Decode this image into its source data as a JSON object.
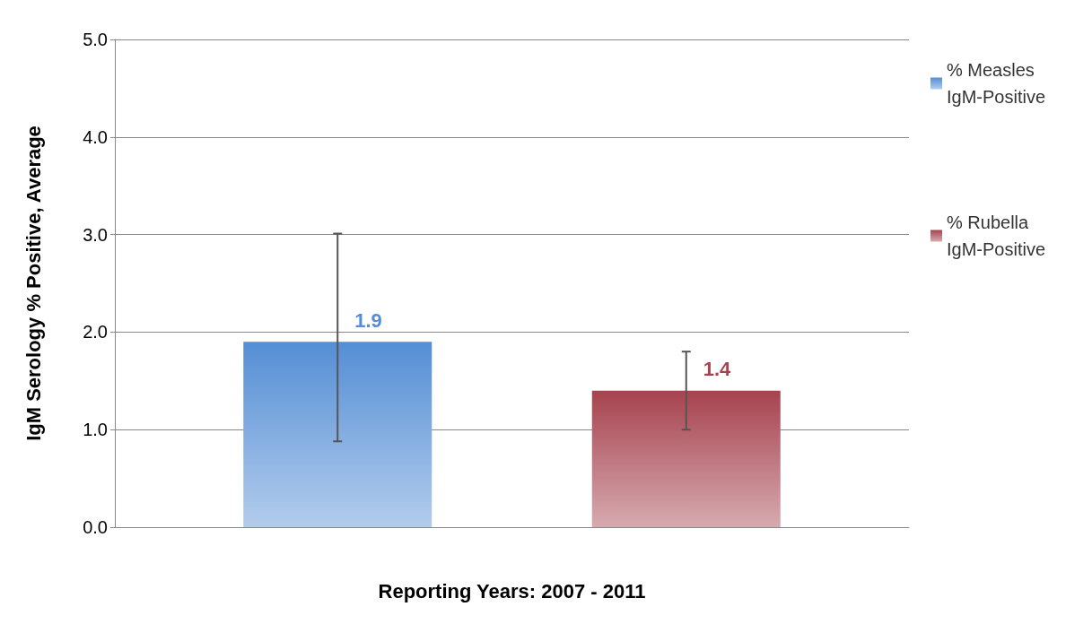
{
  "chart_data": {
    "type": "bar",
    "xlabel": "Reporting Years: 2007 - 2011",
    "ylabel": "IgM Serology % Positive, Average",
    "categories": [
      null
    ],
    "series": [
      {
        "name": "% Measles IgM-Positive",
        "color": "#558ed5",
        "values": [
          1.9
        ],
        "errors": [
          [
            0.88,
            3.01
          ]
        ]
      },
      {
        "name": "% Rubella IgM-Positive",
        "color": "#a6434f",
        "values": [
          1.4
        ],
        "errors": [
          [
            1.0,
            1.8
          ]
        ]
      }
    ],
    "ylim": [
      0,
      5
    ],
    "yticks": [
      {
        "value": 0,
        "label": "0.0"
      },
      {
        "value": 1,
        "label": "1.0"
      },
      {
        "value": 2,
        "label": "2.0"
      },
      {
        "value": 3,
        "label": "3.0"
      },
      {
        "value": 4,
        "label": "4.0"
      },
      {
        "value": 5,
        "label": "5.0"
      }
    ],
    "grid": "y",
    "legend": "top right",
    "data_labels": true
  }
}
